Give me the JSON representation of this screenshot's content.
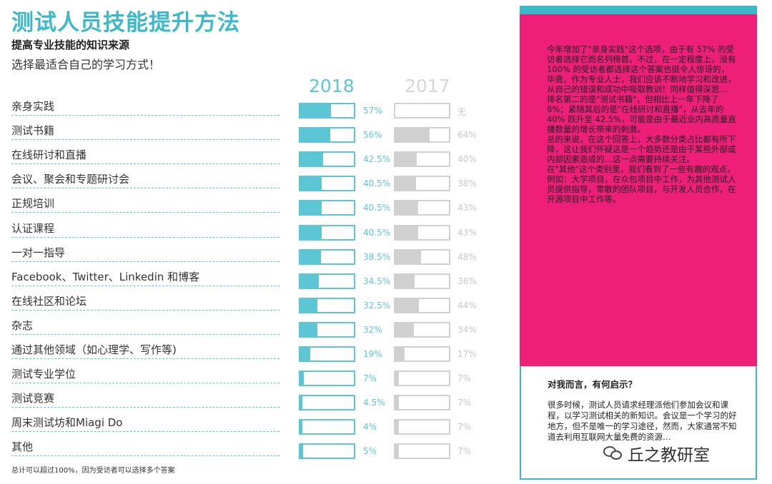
{
  "header": {
    "title": "测试人员技能提升方法",
    "subtitle": "提高专业技能的知识来源",
    "instruction": "选择最适合自己的学习方式！"
  },
  "chart_data": {
    "type": "bar",
    "years": [
      "2018",
      "2017"
    ],
    "categories": [
      "亲身实践",
      "测试书籍",
      "在线研讨和直播",
      "会议、聚会和专题研讨会",
      "正规培训",
      "认证课程",
      "一对一指导",
      "Facebook、Twitter、Linkedin 和博客",
      "在线社区和论坛",
      "杂志",
      "通过其他领域（如心理学、写作等)",
      "测试专业学位",
      "测试竞赛",
      "周末测试坊和Miagi Do",
      "其他"
    ],
    "series": [
      {
        "name": "2018",
        "values": [
          57,
          56,
          42.5,
          40.5,
          40.5,
          40.5,
          38.5,
          34.5,
          32.5,
          32,
          19,
          7,
          4.5,
          4,
          5
        ],
        "labels": [
          "57%",
          "56%",
          "42.5%",
          "40.5%",
          "40.5%",
          "40.5%",
          "38.5%",
          "34.5%",
          "32.5%",
          "32%",
          "19%",
          "7%",
          "4.5%",
          "4%",
          "5%"
        ]
      },
      {
        "name": "2017",
        "values": [
          null,
          64,
          40,
          38,
          43,
          43,
          48,
          36,
          44,
          34,
          17,
          7,
          7,
          7,
          7
        ],
        "labels": [
          "无",
          "64%",
          "40%",
          "38%",
          "43%",
          "43%",
          "48%",
          "36%",
          "44%",
          "34%",
          "17%",
          "7%",
          "7%",
          "7%",
          "7%"
        ]
      }
    ],
    "ylim": [
      0,
      100
    ],
    "colors": {
      "2018": "#5cc6d4",
      "2017": "#d0d0d0"
    }
  },
  "footnote": "总计可以超过100%，因为受访者可以选择多个答案",
  "sidebar": {
    "paragraphs": [
      "今年增加了\"亲身实践\"这个选项，由于有 57% 的受访者选择它而名列榜首。不过，在一定程度上，没有 100% 的受访者都选择这个答案也挺令人惊讶的，毕竟，作为专业人士，我们应该不断地学习和改进，从自己的错误和成功中吸取教训！同样值得深思…",
      "排名第二的是\"测试书籍\"，但相比上一年下降了 8%；紧随其后的是\"在线研讨和直播\"，从去年的 40% 跃升至 42.5%，可能是由于最近业内高质量直播数量的增长带来的刺激。",
      "总的来说，在这个回答上，大多数分类占比都有所下降，这让我们怀疑这是一个趋势还是由于某些外部或内部因素造成的…这一点需要持续关注。",
      "在\"其他\"这个类别里，我们看到了一些有趣的观点，例如：大学项目，在众包项目中工作，为其他测试人员提供指导，零散的团队项目，与开发人员合作，在开源项目中工作等。"
    ],
    "box_title": "对我而言，有何启示？",
    "box_text": "很多时候，测试人员请求经理派他们参加会议和课程，以学习测试相关的新知识。会议是一个学习的好地方，但不是唯一的学习途径，然而，大家通常不知道去利用互联网大量免费的资源…"
  },
  "watermark": {
    "icon": "wechat-icon",
    "text": "丘之教研室"
  }
}
